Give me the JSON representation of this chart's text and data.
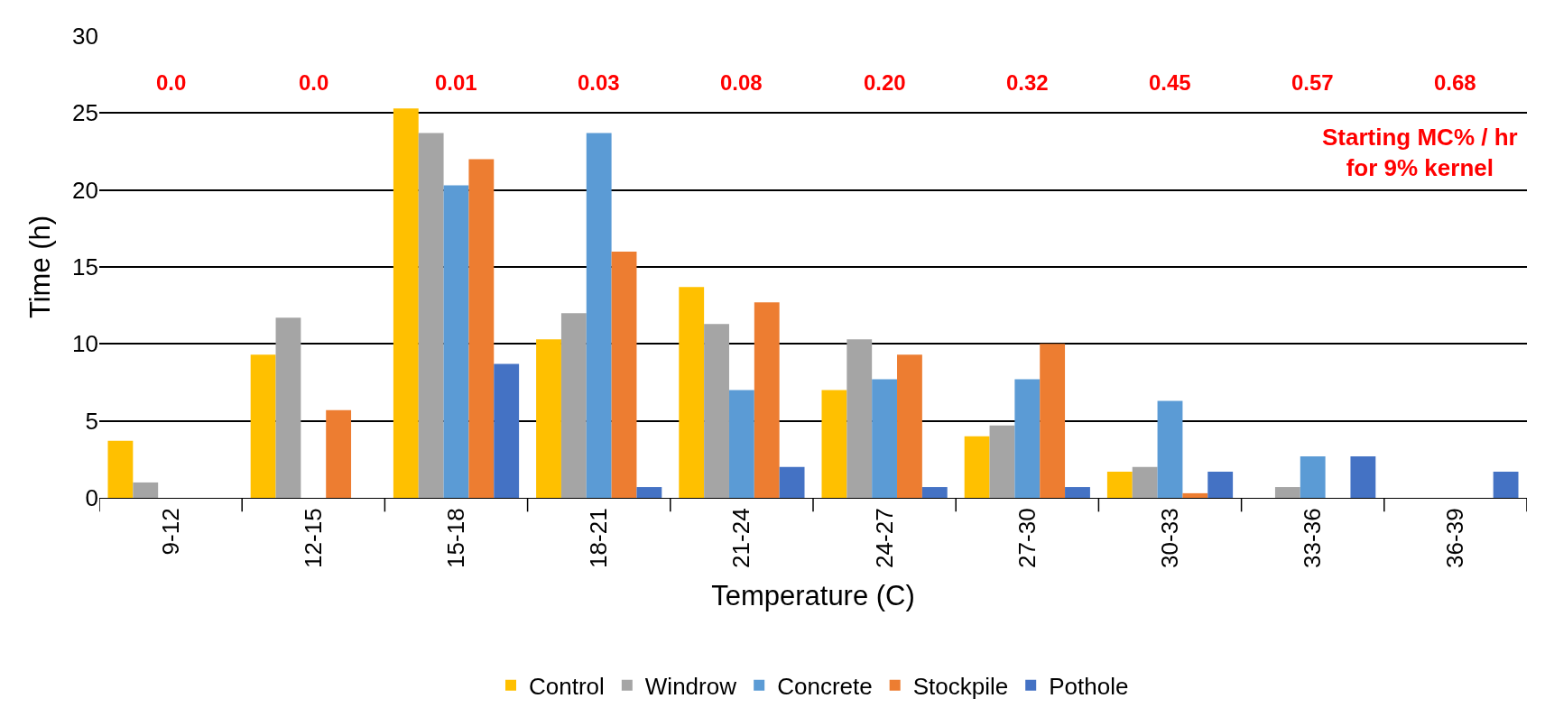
{
  "chart_data": {
    "type": "bar",
    "xlabel": "Temperature (C)",
    "ylabel": "Time (h)",
    "categories": [
      "9-12",
      "12-15",
      "15-18",
      "18-21",
      "21-24",
      "24-27",
      "27-30",
      "30-33",
      "33-36",
      "36-39"
    ],
    "series": [
      {
        "name": "Control",
        "color": "#ffc000",
        "values": [
          3.7,
          9.3,
          25.3,
          10.3,
          13.7,
          7.0,
          4.0,
          1.7,
          null,
          null
        ]
      },
      {
        "name": "Windrow",
        "color": "#a5a5a5",
        "values": [
          1.0,
          11.7,
          23.7,
          12.0,
          11.3,
          10.3,
          4.7,
          2.0,
          0.7,
          null
        ]
      },
      {
        "name": "Concrete",
        "color": "#5b9bd5",
        "values": [
          null,
          null,
          20.3,
          23.7,
          7.0,
          7.7,
          7.7,
          6.3,
          2.7,
          null
        ]
      },
      {
        "name": "Stockpile",
        "color": "#ed7d31",
        "values": [
          null,
          5.7,
          22.0,
          16.0,
          12.7,
          9.3,
          10.0,
          0.3,
          null,
          null
        ]
      },
      {
        "name": "Pothole",
        "color": "#4472c4",
        "values": [
          null,
          null,
          8.7,
          0.7,
          2.0,
          0.7,
          0.7,
          1.7,
          2.7,
          1.7
        ]
      }
    ],
    "ylim": [
      0,
      30
    ],
    "yticks": [
      0,
      5,
      10,
      15,
      20,
      25,
      30
    ],
    "grid": "y",
    "legend": "bottom",
    "annotations": [
      "0.0",
      "0.0",
      "0.01",
      "0.03",
      "0.08",
      "0.20",
      "0.32",
      "0.45",
      "0.57",
      "0.68",
      "Starting MC% / hr\nfor 9% kernel"
    ]
  }
}
